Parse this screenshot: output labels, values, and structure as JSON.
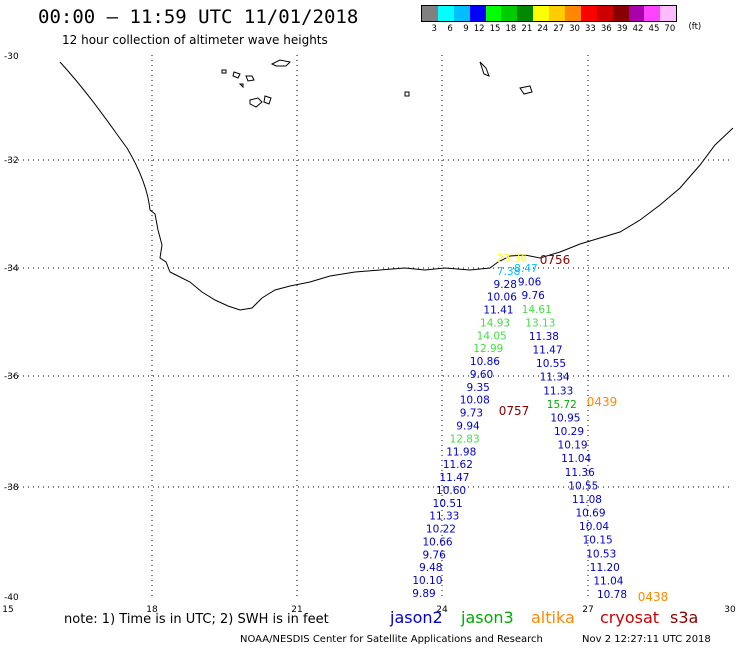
{
  "title": "00:00 – 11:59 UTC 11/01/2018",
  "subtitle": "12 hour collection of altimeter wave heights",
  "legend": {
    "colors": [
      "#808080",
      "#00ffff",
      "#00bfff",
      "#0000ff",
      "#00ff00",
      "#00cc00",
      "#008800",
      "#ffff00",
      "#ffcc00",
      "#ff8800",
      "#ff0000",
      "#cc0000",
      "#880000",
      "#aa00aa",
      "#ff44ff",
      "#ffbbff"
    ],
    "ticks": [
      "3",
      "6",
      "9",
      "12",
      "15",
      "18",
      "21",
      "24",
      "27",
      "30",
      "33",
      "36",
      "39",
      "42",
      "45",
      "70"
    ],
    "unit": "(ft)"
  },
  "axes": {
    "lon_ticks": [
      "15",
      "18",
      "21",
      "24",
      "27",
      "30"
    ],
    "lat_ticks": [
      "-30",
      "-32",
      "-34",
      "-36",
      "-38",
      "-40"
    ]
  },
  "note": "note: 1) Time is in UTC; 2) SWH is in feet",
  "satellites": [
    {
      "name": "jason2",
      "color": "#0000cc"
    },
    {
      "name": "jason3",
      "color": "#00aa00"
    },
    {
      "name": "altika",
      "color": "#ff8800"
    },
    {
      "name": "cryosat",
      "color": "#cc0000"
    },
    {
      "name": "s3a",
      "color": "#880000"
    }
  ],
  "credit": "NOAA/NESDIS Center for Satellite Applications and Research",
  "timestamp": "Nov  2 12:27:11 UTC 2018",
  "pass_times": [
    {
      "text": "0756",
      "color": "#880000"
    },
    {
      "text": "0757",
      "color": "#880000"
    },
    {
      "text": "0439",
      "color": "#ff8800"
    },
    {
      "text": "0438",
      "color": "#ff8800"
    }
  ],
  "track_left": [
    {
      "v": "23.36",
      "c": "#ffff00"
    },
    {
      "v": "7.38",
      "c": "#00bfff"
    },
    {
      "v": "9.28",
      "c": "#0000cc"
    },
    {
      "v": "10.06",
      "c": "#0000cc"
    },
    {
      "v": "11.41",
      "c": "#0000cc"
    },
    {
      "v": "14.93",
      "c": "#44dd44"
    },
    {
      "v": "14.05",
      "c": "#44dd44"
    },
    {
      "v": "12.99",
      "c": "#44dd44"
    },
    {
      "v": "10.86",
      "c": "#0000cc"
    },
    {
      "v": "9.60",
      "c": "#0000cc"
    },
    {
      "v": "9.35",
      "c": "#0000cc"
    },
    {
      "v": "10.08",
      "c": "#0000cc"
    },
    {
      "v": "9.73",
      "c": "#0000cc"
    },
    {
      "v": "9.94",
      "c": "#0000cc"
    },
    {
      "v": "12.83",
      "c": "#44dd44"
    },
    {
      "v": "11.98",
      "c": "#0000cc"
    },
    {
      "v": "11.62",
      "c": "#0000cc"
    },
    {
      "v": "11.47",
      "c": "#0000cc"
    },
    {
      "v": "10.60",
      "c": "#0000cc"
    },
    {
      "v": "10.51",
      "c": "#0000cc"
    },
    {
      "v": "11.33",
      "c": "#0000cc"
    },
    {
      "v": "10.22",
      "c": "#0000cc"
    },
    {
      "v": "10.66",
      "c": "#0000cc"
    },
    {
      "v": "9.76",
      "c": "#0000cc"
    },
    {
      "v": "9.48",
      "c": "#0000cc"
    },
    {
      "v": "10.10",
      "c": "#0000cc"
    },
    {
      "v": "9.89",
      "c": "#0000cc"
    }
  ],
  "track_right": [
    {
      "v": "8.47",
      "c": "#00bfff"
    },
    {
      "v": "9.06",
      "c": "#0000cc"
    },
    {
      "v": "9.76",
      "c": "#0000cc"
    },
    {
      "v": "14.61",
      "c": "#44dd44"
    },
    {
      "v": "13.13",
      "c": "#44dd44"
    },
    {
      "v": "11.38",
      "c": "#0000cc"
    },
    {
      "v": "11.47",
      "c": "#0000cc"
    },
    {
      "v": "10.55",
      "c": "#0000cc"
    },
    {
      "v": "11.34",
      "c": "#0000cc"
    },
    {
      "v": "11.33",
      "c": "#0000cc"
    },
    {
      "v": "15.72",
      "c": "#00aa00"
    },
    {
      "v": "10.95",
      "c": "#0000cc"
    },
    {
      "v": "10.29",
      "c": "#0000cc"
    },
    {
      "v": "10.19",
      "c": "#0000cc"
    },
    {
      "v": "11.04",
      "c": "#0000cc"
    },
    {
      "v": "11.36",
      "c": "#0000cc"
    },
    {
      "v": "10.55",
      "c": "#0000cc"
    },
    {
      "v": "11.08",
      "c": "#0000cc"
    },
    {
      "v": "10.69",
      "c": "#0000cc"
    },
    {
      "v": "10.04",
      "c": "#0000cc"
    },
    {
      "v": "10.15",
      "c": "#0000cc"
    },
    {
      "v": "10.53",
      "c": "#0000cc"
    },
    {
      "v": "11.20",
      "c": "#0000cc"
    },
    {
      "v": "11.04",
      "c": "#0000cc"
    },
    {
      "v": "10.78",
      "c": "#0000cc"
    }
  ]
}
